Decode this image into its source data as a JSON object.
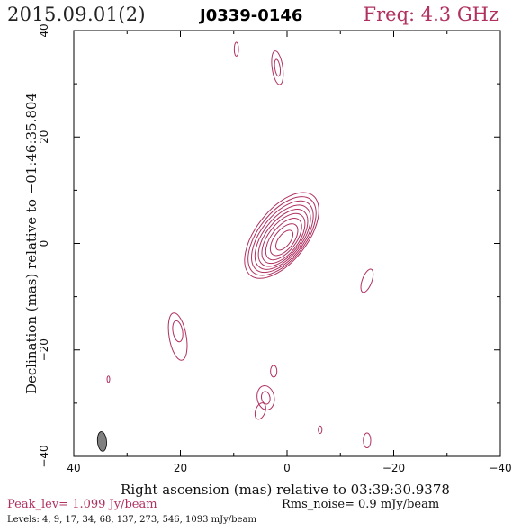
{
  "header": {
    "date": "2015.09.01(2)",
    "source": "J0339-0146",
    "frequency": "Freq: 4.3 GHz"
  },
  "footer": {
    "peak": "Peak_lev= 1.099 Jy/beam",
    "rms": "Rms_noise= 0.9 mJy/beam",
    "levels": "Levels: 4, 9, 17, 34, 68, 137, 273, 546, 1093 mJy/beam"
  },
  "colors": {
    "contour": "#b03060",
    "frame": "#000000",
    "beam": "#808080"
  },
  "chart_data": {
    "type": "contour",
    "xlabel": "Right ascension (mas) relative to 03:39:30.9378",
    "ylabel": "Declination (mas) relative to −01:46:35.804",
    "xlim": [
      40,
      -40
    ],
    "ylim": [
      -40,
      40
    ],
    "x_ticks": [
      "40",
      "20",
      "0",
      "−20",
      "−40"
    ],
    "y_ticks": [
      "−40",
      "−20",
      "0",
      "20",
      "40"
    ],
    "x_tick_values": [
      40,
      20,
      0,
      -20,
      -40
    ],
    "y_tick_values": [
      -40,
      -20,
      0,
      20,
      40
    ],
    "contour_levels_mJy_per_beam": [
      4,
      9,
      17,
      34,
      68,
      137,
      273,
      546,
      1093
    ],
    "core_component": {
      "center": [
        1.0,
        1.5
      ],
      "position_angle_deg": -52,
      "contour_semi_axes": [
        [
          9.5,
          4.8
        ],
        [
          8.7,
          4.4
        ],
        [
          7.9,
          4.0
        ],
        [
          7.1,
          3.6
        ],
        [
          6.3,
          3.2
        ],
        [
          5.5,
          2.8
        ],
        [
          4.6,
          2.3
        ],
        [
          3.5,
          1.8
        ],
        [
          2.2,
          1.1
        ]
      ]
    },
    "islands": [
      {
        "name": "blob-n1",
        "center": [
          9.5,
          36.5
        ],
        "semi_axes": [
          0.4,
          1.3
        ],
        "angle_deg": 0
      },
      {
        "name": "blob-n2",
        "center": [
          1.8,
          33
        ],
        "semi_axes": [
          1.0,
          3.2
        ],
        "angle_deg": -8
      },
      {
        "name": "blob-n2-inner",
        "center": [
          1.8,
          33
        ],
        "semi_axes": [
          0.5,
          1.6
        ],
        "angle_deg": -8
      },
      {
        "name": "blob-e1",
        "center": [
          -15,
          -7
        ],
        "semi_axes": [
          0.9,
          2.3
        ],
        "angle_deg": 20
      },
      {
        "name": "blob-w1",
        "center": [
          20.5,
          -17.5
        ],
        "semi_axes": [
          1.6,
          4.5
        ],
        "angle_deg": -10
      },
      {
        "name": "blob-w1-inner",
        "center": [
          20.5,
          -16.5
        ],
        "semi_axes": [
          0.9,
          2.0
        ],
        "angle_deg": -10
      },
      {
        "name": "blob-sw",
        "center": [
          33.5,
          -25.5
        ],
        "semi_axes": [
          0.25,
          0.6
        ],
        "angle_deg": 0
      },
      {
        "name": "blob-s1",
        "center": [
          2.5,
          -24
        ],
        "semi_axes": [
          0.6,
          1.1
        ],
        "angle_deg": 0
      },
      {
        "name": "blob-s2",
        "center": [
          4,
          -29
        ],
        "semi_axes": [
          1.6,
          2.3
        ],
        "angle_deg": -10
      },
      {
        "name": "blob-s2-inner",
        "center": [
          4,
          -29
        ],
        "semi_axes": [
          0.8,
          1.2
        ],
        "angle_deg": -10
      },
      {
        "name": "blob-s3",
        "center": [
          5,
          -31.5
        ],
        "semi_axes": [
          0.9,
          1.6
        ],
        "angle_deg": 20
      },
      {
        "name": "blob-se1",
        "center": [
          -6.2,
          -35
        ],
        "semi_axes": [
          0.35,
          0.7
        ],
        "angle_deg": 0
      },
      {
        "name": "blob-se2",
        "center": [
          -15,
          -37
        ],
        "semi_axes": [
          0.7,
          1.4
        ],
        "angle_deg": 0
      }
    ],
    "beam": {
      "center": [
        34.7,
        -37.2
      ],
      "semi_axes": [
        0.85,
        1.85
      ],
      "angle_deg": -5
    }
  }
}
